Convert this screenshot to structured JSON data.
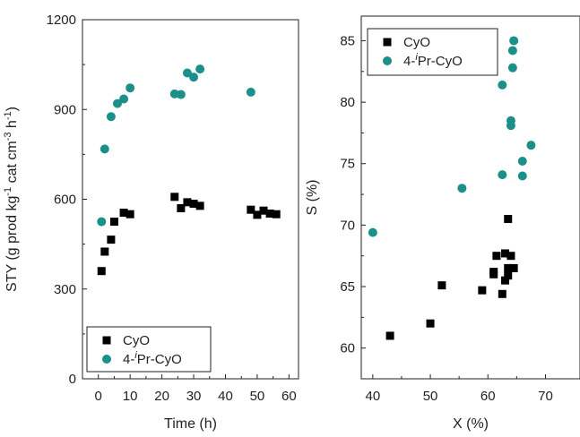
{
  "chart_data": [
    {
      "type": "scatter",
      "xlabel": "Time (h)",
      "ylabel": "STY (g prod kg",
      "ylabel_parts": [
        "STY (g prod kg",
        "-1",
        " cat cm",
        "-3",
        " h",
        "-1",
        ")"
      ],
      "xlim": [
        -5,
        63
      ],
      "ylim": [
        0,
        1200
      ],
      "xticks": [
        0,
        10,
        20,
        30,
        40,
        50,
        60
      ],
      "yticks": [
        0,
        300,
        600,
        900,
        1200
      ],
      "legend_position": "bottom-left",
      "series": [
        {
          "name": "CyO",
          "legend_parts": [
            "CyO"
          ],
          "color": "#000000",
          "marker": "square",
          "x": [
            1,
            2,
            4,
            5,
            8,
            10,
            24,
            26,
            28,
            30,
            32,
            48,
            50,
            52,
            54,
            56
          ],
          "y": [
            360,
            425,
            465,
            525,
            555,
            550,
            608,
            570,
            590,
            585,
            578,
            565,
            548,
            562,
            552,
            550
          ]
        },
        {
          "name": "4-iPr-CyO",
          "legend_parts": [
            "4-",
            "i",
            "Pr-CyO"
          ],
          "color": "#1b8f8a",
          "marker": "circle",
          "x": [
            1,
            2,
            4,
            6,
            8,
            10,
            24,
            26,
            28,
            30,
            32,
            48
          ],
          "y": [
            525,
            768,
            876,
            920,
            935,
            972,
            952,
            950,
            1022,
            1008,
            1035,
            958
          ]
        }
      ]
    },
    {
      "type": "scatter",
      "xlabel": "X (%)",
      "ylabel": "S (%)",
      "xlim": [
        38,
        76
      ],
      "ylim": [
        57.5,
        87
      ],
      "xticks": [
        40,
        50,
        60,
        70
      ],
      "yticks": [
        60,
        65,
        70,
        75,
        80,
        85
      ],
      "legend_position": "top-left",
      "series": [
        {
          "name": "CyO",
          "legend_parts": [
            "CyO"
          ],
          "color": "#000000",
          "marker": "square",
          "x": [
            43,
            50,
            52,
            59,
            61,
            61,
            61.5,
            62.5,
            63,
            63,
            63.5,
            63.5,
            64,
            64,
            64.5,
            63.5
          ],
          "y": [
            61,
            62,
            65.1,
            64.7,
            66.2,
            66,
            67.5,
            64.4,
            65.5,
            67.7,
            66.5,
            65.9,
            67.5,
            66.5,
            66.5,
            70.5
          ]
        },
        {
          "name": "4-iPr-CyO",
          "legend_parts": [
            "4-",
            "i",
            "Pr-CyO"
          ],
          "color": "#1b8f8a",
          "marker": "circle",
          "x": [
            40,
            55.5,
            62.5,
            62.5,
            64,
            64,
            64.3,
            64.3,
            64.5,
            66,
            66,
            67.5
          ],
          "y": [
            69.4,
            73,
            74.1,
            81.4,
            78.5,
            78.1,
            84.2,
            82.8,
            85,
            75.2,
            74,
            76.5
          ]
        }
      ]
    }
  ]
}
